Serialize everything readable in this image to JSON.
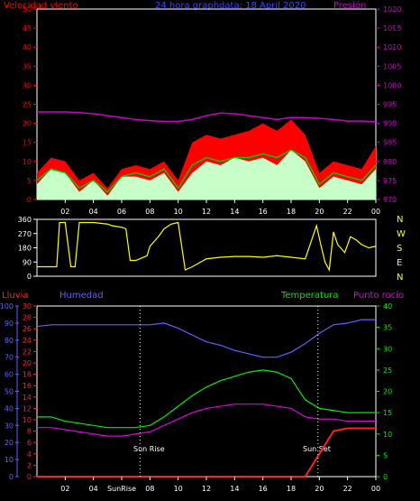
{
  "colors": {
    "wind": "#ff0000",
    "gust_fill": "#c8ffc8",
    "avg_wind": "#00cc00",
    "pressure": "#cc00cc",
    "direction": "#ffff00",
    "title": "#4040ff",
    "rain": "#ff2020",
    "humidity": "#6060ff",
    "temperature": "#00ee00",
    "dew_point": "#dd00dd",
    "axis": "#ffffff"
  },
  "header": {
    "wind_label": "Velocidad viento",
    "title": "24 hora graphdata: 18 April 2020",
    "pressure_label": "Presión"
  },
  "panel_labels": {
    "rain": "Lluvia",
    "humidity": "Humedad",
    "temperature": "Temperatura",
    "dew_point": "Punto rocío",
    "sunrise": "Sun Rise",
    "sunset": "Sun Set",
    "compass": [
      "N",
      "W",
      "S",
      "E",
      "N"
    ]
  },
  "x_ticks": [
    "02",
    "04",
    "06",
    "08",
    "10",
    "12",
    "14",
    "16",
    "18",
    "20",
    "22",
    "00"
  ],
  "x_ticks_bottom": [
    "02",
    "04",
    "SunRise",
    "08",
    "10",
    "12",
    "14",
    "16",
    "18",
    "20",
    "22",
    "00"
  ],
  "chart_data": [
    {
      "type": "line",
      "ylabel": "Velocidad viento",
      "ylabel_right": "Presión",
      "ylim": [
        0,
        50
      ],
      "y_ticks": [
        0,
        5,
        10,
        15,
        20,
        25,
        30,
        35,
        40,
        45,
        50
      ],
      "ylim_right": [
        970,
        1020
      ],
      "y_ticks_right": [
        970,
        975,
        980,
        985,
        990,
        995,
        1000,
        1005,
        1010,
        1015,
        1020
      ],
      "x_hours": [
        0,
        1,
        2,
        3,
        4,
        5,
        6,
        7,
        8,
        9,
        10,
        11,
        12,
        13,
        14,
        15,
        16,
        17,
        18,
        19,
        20,
        21,
        22,
        23,
        24
      ],
      "series": [
        {
          "name": "gust",
          "values": [
            7,
            11,
            10,
            5,
            7,
            3,
            8,
            9,
            8,
            10,
            5,
            15,
            17,
            16,
            17,
            18,
            20,
            18,
            21,
            17,
            7,
            10,
            9,
            8,
            14
          ]
        },
        {
          "name": "wind",
          "values": [
            4,
            8,
            7,
            2,
            5,
            1,
            6,
            6,
            5,
            7,
            2,
            7,
            10,
            9,
            11,
            10,
            11,
            9,
            13,
            10,
            3,
            6,
            5,
            4,
            8
          ]
        },
        {
          "name": "average",
          "values": [
            5,
            8,
            7,
            3,
            5,
            2,
            6,
            7,
            6,
            8,
            3,
            9,
            11,
            10,
            11,
            11,
            12,
            11,
            13,
            11,
            4,
            7,
            6,
            5,
            9
          ]
        },
        {
          "name": "pressure",
          "values": [
            993,
            993,
            993,
            992.8,
            992.5,
            992,
            991.5,
            991,
            990.7,
            990.5,
            990.5,
            991,
            992,
            992.7,
            992.5,
            992,
            991.5,
            991,
            991.5,
            991.5,
            991.3,
            991,
            990.6,
            990.6,
            990.4
          ]
        }
      ]
    },
    {
      "type": "line",
      "ylim": [
        0,
        360
      ],
      "y_ticks": [
        0,
        90,
        180,
        270,
        360
      ],
      "x_hours": [
        0,
        0.3,
        0.7,
        1.4,
        1.6,
        2.0,
        2.4,
        2.7,
        3.0,
        3.5,
        4.0,
        5.0,
        5.3,
        6.0,
        6.3,
        6.6,
        7.0,
        7.8,
        8.0,
        8.6,
        9.0,
        9.5,
        10.0,
        10.5,
        11,
        12,
        13,
        14,
        15,
        16,
        17,
        18,
        19,
        19.8,
        20.1,
        20.4,
        20.7,
        21.0,
        21.3,
        21.8,
        22.2,
        22.6,
        23.0,
        23.5,
        24
      ],
      "series": [
        {
          "name": "direction",
          "values": [
            60,
            60,
            60,
            60,
            340,
            340,
            60,
            60,
            340,
            340,
            340,
            330,
            320,
            310,
            300,
            100,
            100,
            130,
            190,
            250,
            300,
            330,
            340,
            40,
            60,
            110,
            120,
            125,
            125,
            120,
            130,
            120,
            110,
            320,
            200,
            90,
            40,
            280,
            200,
            150,
            250,
            230,
            200,
            180,
            190
          ]
        }
      ]
    },
    {
      "type": "line",
      "ylabel": "Lluvia",
      "ylim": [
        0,
        30
      ],
      "y_ticks": [
        0,
        2,
        4,
        6,
        8,
        10,
        12,
        14,
        16,
        18,
        20,
        22,
        24,
        26,
        28,
        30
      ],
      "humidity_ylim": [
        0,
        100
      ],
      "humidity_ticks": [
        0,
        10,
        20,
        30,
        40,
        50,
        60,
        70,
        80,
        90,
        100
      ],
      "temperature_ylim": [
        0,
        40
      ],
      "temperature_ticks": [
        0,
        5,
        10,
        15,
        20,
        25,
        30,
        35,
        40
      ],
      "x_hours": [
        0,
        1,
        2,
        3,
        4,
        5,
        6,
        7,
        8,
        9,
        10,
        11,
        12,
        13,
        14,
        15,
        16,
        17,
        18,
        19,
        20,
        21,
        22,
        23,
        24
      ],
      "series": [
        {
          "name": "Humedad",
          "values": [
            88,
            89,
            89,
            89,
            89,
            89,
            89,
            89,
            89,
            90,
            87,
            83,
            79,
            77,
            74,
            72,
            70,
            70,
            73,
            78,
            84,
            89,
            90,
            92,
            92
          ]
        },
        {
          "name": "Temperatura",
          "values": [
            14,
            14,
            13,
            12.5,
            12,
            11.5,
            11.5,
            11.5,
            12,
            14,
            16.5,
            19,
            21,
            22.5,
            23.5,
            24.5,
            25,
            24.5,
            23,
            18,
            16,
            15.5,
            15,
            15,
            15
          ]
        },
        {
          "name": "Punto rocío",
          "values": [
            11.5,
            11.5,
            11,
            10.5,
            10,
            9.5,
            9.5,
            10,
            10.5,
            12,
            13.5,
            15,
            16,
            16.5,
            17,
            17,
            17,
            16.5,
            16,
            14,
            13.5,
            13.5,
            13,
            13,
            13
          ]
        },
        {
          "name": "Lluvia",
          "values": [
            0,
            0,
            0,
            0,
            0,
            0,
            0,
            0,
            0,
            0,
            0,
            0,
            0,
            0,
            0,
            0,
            0,
            0,
            0,
            0,
            4,
            8,
            8.5,
            8.5,
            8.5
          ]
        }
      ],
      "sunrise_hour": 7.3,
      "sunset_hour": 19.9
    }
  ]
}
